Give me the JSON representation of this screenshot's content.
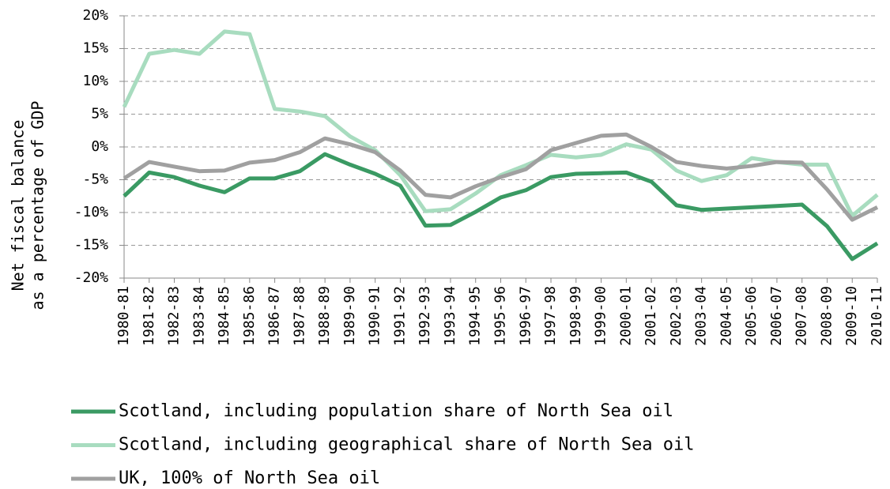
{
  "chart_data": {
    "type": "line",
    "ylabel": [
      "Net fiscal balance",
      "as a percentage of GDP"
    ],
    "categories": [
      "1980-81",
      "1981-82",
      "1982-83",
      "1983-84",
      "1984-85",
      "1985-86",
      "1986-87",
      "1987-88",
      "1988-89",
      "1989-90",
      "1990-91",
      "1991-92",
      "1992-93",
      "1993-94",
      "1994-95",
      "1995-96",
      "1996-97",
      "1997-98",
      "1998-99",
      "1999-00",
      "2000-01",
      "2001-02",
      "2002-03",
      "2003-04",
      "2004-05",
      "2005-06",
      "2006-07",
      "2007-08",
      "2008-09",
      "2009-10",
      "2010-11"
    ],
    "series": [
      {
        "name": "Scotland, including population share of North Sea oil",
        "color": "#3a9a63",
        "values": [
          -7.5,
          -3.9,
          -4.6,
          -5.9,
          -6.9,
          -4.8,
          -4.8,
          -3.7,
          -1.1,
          -2.7,
          -4.1,
          -5.9,
          -12.0,
          -11.9,
          -9.9,
          -7.7,
          -6.6,
          -4.6,
          -4.1,
          -4.0,
          -3.9,
          -5.3,
          -8.9,
          -9.6,
          -9.4,
          -9.2,
          -9.0,
          -8.8,
          -12.1,
          -17.1,
          -14.7
        ]
      },
      {
        "name": "Scotland, including geographical share of North Sea oil",
        "color": "#a8dcbf",
        "values": [
          6.1,
          14.2,
          14.8,
          14.2,
          17.6,
          17.2,
          5.8,
          5.4,
          4.7,
          1.6,
          -0.5,
          -4.3,
          -9.8,
          -9.5,
          -7.1,
          -4.3,
          -2.8,
          -1.2,
          -1.6,
          -1.2,
          0.4,
          -0.4,
          -3.6,
          -5.2,
          -4.3,
          -1.7,
          -2.3,
          -2.7,
          -2.7,
          -10.5,
          -7.3
        ]
      },
      {
        "name": "UK, 100% of North Sea oil",
        "color": "#a0a0a0",
        "values": [
          -4.8,
          -2.3,
          -3.0,
          -3.7,
          -3.6,
          -2.4,
          -2.0,
          -0.8,
          1.3,
          0.4,
          -0.8,
          -3.6,
          -7.3,
          -7.7,
          -6.0,
          -4.6,
          -3.4,
          -0.5,
          0.6,
          1.7,
          1.9,
          0,
          -2.3,
          -2.9,
          -3.3,
          -2.9,
          -2.3,
          -2.4,
          -6.5,
          -11.1,
          -9.2
        ]
      }
    ],
    "ylim": [
      -20,
      20
    ],
    "yticks": [
      {
        "value": -20,
        "label": "-20%"
      },
      {
        "value": -15,
        "label": "-15%"
      },
      {
        "value": -10,
        "label": "-10%"
      },
      {
        "value": -5,
        "label": "-5%"
      },
      {
        "value": 0,
        "label": "0%"
      },
      {
        "value": 5,
        "label": "5%"
      },
      {
        "value": 10,
        "label": "10%"
      },
      {
        "value": 15,
        "label": "15%"
      },
      {
        "value": 20,
        "label": "20%"
      }
    ],
    "grid": true
  }
}
